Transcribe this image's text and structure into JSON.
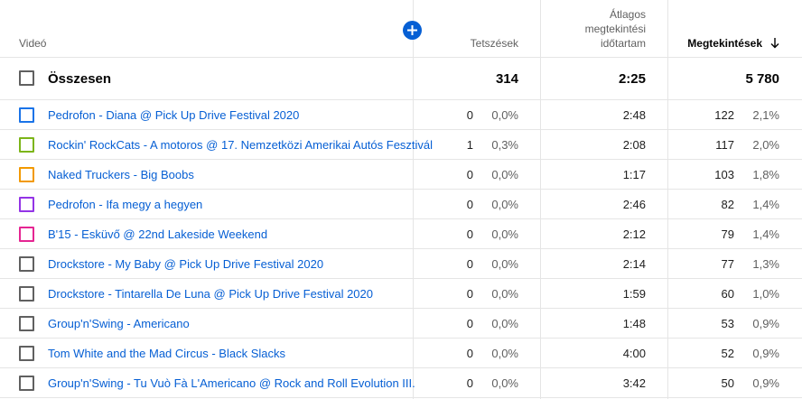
{
  "header": {
    "video_label": "Videó",
    "likes_label": "Tetszések",
    "avg_label_line1": "Átlagos",
    "avg_label_line2": "megtekintési",
    "avg_label_line3": "időtartam",
    "views_label": "Megtekintések"
  },
  "total": {
    "label": "Összesen",
    "likes": "314",
    "avg_duration": "2:25",
    "views": "5 780"
  },
  "rows": [
    {
      "title": "Pedrofon - Diana @ Pick Up Drive Festival 2020",
      "likes": "0",
      "likes_pct": "0,0%",
      "avg": "2:48",
      "views": "122",
      "views_pct": "2,1%",
      "color": "#1a73e8"
    },
    {
      "title": "Rockin' RockCats - A motoros @ 17. Nemzetközi Amerikai Autós Fesztivál",
      "likes": "1",
      "likes_pct": "0,3%",
      "avg": "2:08",
      "views": "117",
      "views_pct": "2,0%",
      "color": "#7cb518"
    },
    {
      "title": "Naked Truckers - Big Boobs",
      "likes": "0",
      "likes_pct": "0,0%",
      "avg": "1:17",
      "views": "103",
      "views_pct": "1,8%",
      "color": "#f29900"
    },
    {
      "title": "Pedrofon - Ifa megy a hegyen",
      "likes": "0",
      "likes_pct": "0,0%",
      "avg": "2:46",
      "views": "82",
      "views_pct": "1,4%",
      "color": "#9334e6"
    },
    {
      "title": "B'15 - Esküvő @ 22nd Lakeside Weekend",
      "likes": "0",
      "likes_pct": "0,0%",
      "avg": "2:12",
      "views": "79",
      "views_pct": "1,4%",
      "color": "#e52592"
    },
    {
      "title": "Drockstore - My Baby @ Pick Up Drive Festival 2020",
      "likes": "0",
      "likes_pct": "0,0%",
      "avg": "2:14",
      "views": "77",
      "views_pct": "1,3%",
      "color": "#606060"
    },
    {
      "title": "Drockstore - Tintarella De Luna @ Pick Up Drive Festival 2020",
      "likes": "0",
      "likes_pct": "0,0%",
      "avg": "1:59",
      "views": "60",
      "views_pct": "1,0%",
      "color": "#606060"
    },
    {
      "title": "Group'n'Swing - Americano",
      "likes": "0",
      "likes_pct": "0,0%",
      "avg": "1:48",
      "views": "53",
      "views_pct": "0,9%",
      "color": "#606060"
    },
    {
      "title": "Tom White and the Mad Circus - Black Slacks",
      "likes": "0",
      "likes_pct": "0,0%",
      "avg": "4:00",
      "views": "52",
      "views_pct": "0,9%",
      "color": "#606060"
    },
    {
      "title": "Group'n'Swing - Tu Vuò Fà L'Americano @ Rock and Roll Evolution III.",
      "likes": "0",
      "likes_pct": "0,0%",
      "avg": "3:42",
      "views": "50",
      "views_pct": "0,9%",
      "color": "#606060"
    }
  ]
}
